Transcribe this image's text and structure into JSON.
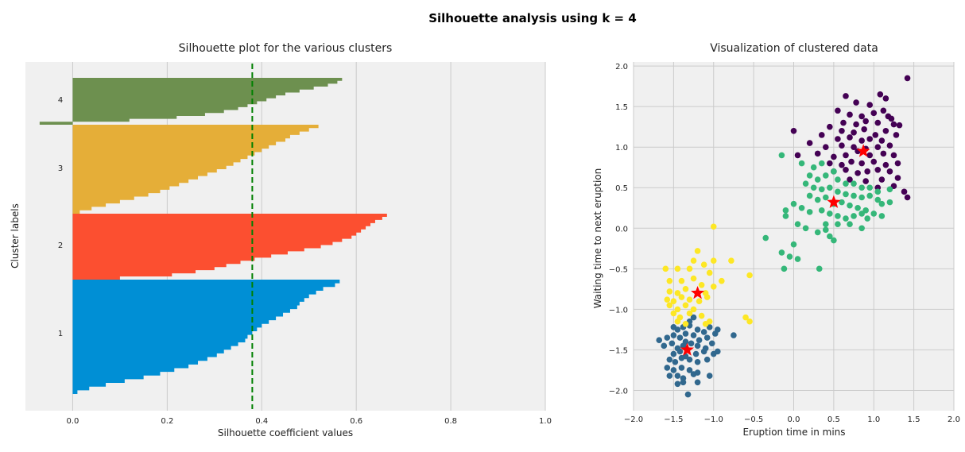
{
  "figure": {
    "suptitle": "Silhouette analysis using k = 4"
  },
  "chart_data": [
    {
      "type": "bar",
      "orientation": "horizontal",
      "title": "Silhouette plot for the various clusters",
      "xlabel": "Silhouette coefficient values",
      "ylabel": "Cluster labels",
      "xlim": [
        -0.1,
        1.0
      ],
      "xticks": [
        "0.0",
        "0.2",
        "0.4",
        "0.6",
        "0.8",
        "1.0"
      ],
      "grid": "vertical",
      "average_silhouette": 0.38,
      "average_line_color": "#008000",
      "clusters": [
        {
          "label": "1",
          "color": "#008fd5",
          "max": 0.565,
          "profile": [
            0.565,
            0.555,
            0.53,
            0.515,
            0.5,
            0.49,
            0.48,
            0.475,
            0.46,
            0.445,
            0.43,
            0.415,
            0.4,
            0.39,
            0.38,
            0.37,
            0.365,
            0.35,
            0.335,
            0.32,
            0.305,
            0.285,
            0.265,
            0.245,
            0.215,
            0.185,
            0.15,
            0.11,
            0.07,
            0.035,
            0.01
          ]
        },
        {
          "label": "2",
          "color": "#fc4f30",
          "max": 0.665,
          "profile": [
            0.665,
            0.655,
            0.64,
            0.63,
            0.62,
            0.61,
            0.6,
            0.59,
            0.57,
            0.55,
            0.525,
            0.49,
            0.455,
            0.42,
            0.385,
            0.355,
            0.325,
            0.3,
            0.26,
            0.21,
            0.1
          ]
        },
        {
          "label": "3",
          "color": "#e5ae38",
          "max": 0.52,
          "profile": [
            0.52,
            0.5,
            0.48,
            0.46,
            0.45,
            0.43,
            0.415,
            0.4,
            0.385,
            0.37,
            0.355,
            0.34,
            0.325,
            0.305,
            0.285,
            0.265,
            0.245,
            0.225,
            0.205,
            0.185,
            0.16,
            0.13,
            0.1,
            0.07,
            0.04,
            0.015
          ]
        },
        {
          "label": "4",
          "color": "#6d904f",
          "max": 0.57,
          "profile": [
            0.57,
            0.56,
            0.54,
            0.51,
            0.48,
            0.45,
            0.43,
            0.41,
            0.39,
            0.37,
            0.35,
            0.32,
            0.28,
            0.22,
            0.12,
            -0.07
          ]
        }
      ]
    },
    {
      "type": "scatter",
      "title": "Visualization of clustered data",
      "xlabel": "Eruption time in mins",
      "ylabel": "Waiting time to next eruption",
      "xlim": [
        -2.0,
        2.0
      ],
      "ylim": [
        -2.25,
        2.05
      ],
      "xticks": [
        "−2.0",
        "−1.5",
        "−1.0",
        "−0.5",
        "0.0",
        "0.5",
        "1.0",
        "1.5",
        "2.0"
      ],
      "yticks": [
        "2.0",
        "1.5",
        "1.0",
        "0.5",
        "0.0",
        "−0.5",
        "−1.0",
        "−1.5",
        "−2.0"
      ],
      "grid": true,
      "centroid_color": "#ff0000",
      "series": [
        {
          "color": "#440154",
          "centroid": [
            0.87,
            0.95
          ],
          "points": [
            [
              0.65,
              1.63
            ],
            [
              0.78,
              1.55
            ],
            [
              0.95,
              1.52
            ],
            [
              1.08,
              1.65
            ],
            [
              1.15,
              1.6
            ],
            [
              1.42,
              1.85
            ],
            [
              0.55,
              1.45
            ],
            [
              0.7,
              1.4
            ],
            [
              0.85,
              1.38
            ],
            [
              1.0,
              1.42
            ],
            [
              1.12,
              1.45
            ],
            [
              1.18,
              1.38
            ],
            [
              0.62,
              1.3
            ],
            [
              0.78,
              1.28
            ],
            [
              0.9,
              1.32
            ],
            [
              1.05,
              1.3
            ],
            [
              1.22,
              1.35
            ],
            [
              0.45,
              1.25
            ],
            [
              0.6,
              1.2
            ],
            [
              0.75,
              1.18
            ],
            [
              0.88,
              1.22
            ],
            [
              1.02,
              1.15
            ],
            [
              1.15,
              1.2
            ],
            [
              1.25,
              1.28
            ],
            [
              1.32,
              1.27
            ],
            [
              0.0,
              1.2
            ],
            [
              0.35,
              1.15
            ],
            [
              0.55,
              1.1
            ],
            [
              0.7,
              1.12
            ],
            [
              0.85,
              1.08
            ],
            [
              0.95,
              1.1
            ],
            [
              1.1,
              1.08
            ],
            [
              1.28,
              1.15
            ],
            [
              0.2,
              1.05
            ],
            [
              0.4,
              1.0
            ],
            [
              0.6,
              1.02
            ],
            [
              0.75,
              1.0
            ],
            [
              0.9,
              0.98
            ],
            [
              1.05,
              1.0
            ],
            [
              1.2,
              1.02
            ],
            [
              0.05,
              0.9
            ],
            [
              0.3,
              0.92
            ],
            [
              0.5,
              0.88
            ],
            [
              0.65,
              0.9
            ],
            [
              0.8,
              0.95
            ],
            [
              0.95,
              0.9
            ],
            [
              1.12,
              0.92
            ],
            [
              1.25,
              0.9
            ],
            [
              0.45,
              0.8
            ],
            [
              0.6,
              0.78
            ],
            [
              0.72,
              0.82
            ],
            [
              0.85,
              0.8
            ],
            [
              1.0,
              0.82
            ],
            [
              1.15,
              0.78
            ],
            [
              1.3,
              0.8
            ],
            [
              0.5,
              0.7
            ],
            [
              0.65,
              0.72
            ],
            [
              0.8,
              0.68
            ],
            [
              0.92,
              0.7
            ],
            [
              1.05,
              0.72
            ],
            [
              1.2,
              0.7
            ],
            [
              0.7,
              0.6
            ],
            [
              0.9,
              0.58
            ],
            [
              1.1,
              0.6
            ],
            [
              1.3,
              0.62
            ],
            [
              1.05,
              0.5
            ],
            [
              1.25,
              0.52
            ],
            [
              1.38,
              0.45
            ],
            [
              1.42,
              0.38
            ]
          ]
        },
        {
          "color": "#35b779",
          "centroid": [
            0.5,
            0.32
          ],
          "points": [
            [
              -0.15,
              0.9
            ],
            [
              0.1,
              0.8
            ],
            [
              0.25,
              0.75
            ],
            [
              0.35,
              0.8
            ],
            [
              0.2,
              0.65
            ],
            [
              0.3,
              0.6
            ],
            [
              0.4,
              0.65
            ],
            [
              0.5,
              0.7
            ],
            [
              0.55,
              0.6
            ],
            [
              0.65,
              0.55
            ],
            [
              0.75,
              0.55
            ],
            [
              0.85,
              0.5
            ],
            [
              0.95,
              0.5
            ],
            [
              1.05,
              0.45
            ],
            [
              1.2,
              0.48
            ],
            [
              0.15,
              0.55
            ],
            [
              0.25,
              0.5
            ],
            [
              0.35,
              0.48
            ],
            [
              0.45,
              0.5
            ],
            [
              0.55,
              0.45
            ],
            [
              0.65,
              0.42
            ],
            [
              0.75,
              0.4
            ],
            [
              0.85,
              0.38
            ],
            [
              0.95,
              0.4
            ],
            [
              1.05,
              0.35
            ],
            [
              1.1,
              0.3
            ],
            [
              1.2,
              0.32
            ],
            [
              0.3,
              0.35
            ],
            [
              0.4,
              0.38
            ],
            [
              0.5,
              0.3
            ],
            [
              0.6,
              0.32
            ],
            [
              0.7,
              0.28
            ],
            [
              0.8,
              0.25
            ],
            [
              0.9,
              0.22
            ],
            [
              1.0,
              0.18
            ],
            [
              0.0,
              0.3
            ],
            [
              0.1,
              0.25
            ],
            [
              0.2,
              0.2
            ],
            [
              0.35,
              0.22
            ],
            [
              0.45,
              0.18
            ],
            [
              0.55,
              0.15
            ],
            [
              0.65,
              0.12
            ],
            [
              0.75,
              0.15
            ],
            [
              0.85,
              0.18
            ],
            [
              0.92,
              0.12
            ],
            [
              1.1,
              0.15
            ],
            [
              0.4,
              0.05
            ],
            [
              0.55,
              0.05
            ],
            [
              0.7,
              0.05
            ],
            [
              0.85,
              0.0
            ],
            [
              -0.1,
              0.22
            ],
            [
              0.05,
              0.05
            ],
            [
              0.15,
              0.0
            ],
            [
              0.3,
              -0.05
            ],
            [
              0.45,
              -0.1
            ],
            [
              0.5,
              -0.15
            ],
            [
              0.4,
              -0.02
            ],
            [
              -0.05,
              -0.35
            ],
            [
              -0.15,
              -0.3
            ],
            [
              0.0,
              -0.2
            ],
            [
              -0.1,
              0.15
            ],
            [
              -0.35,
              -0.12
            ],
            [
              -0.12,
              -0.5
            ],
            [
              0.32,
              -0.5
            ],
            [
              0.05,
              -0.38
            ],
            [
              0.2,
              0.4
            ]
          ]
        },
        {
          "color": "#31688e",
          "centroid": [
            -1.33,
            -1.5
          ],
          "points": [
            [
              -1.5,
              -1.22
            ],
            [
              -1.45,
              -1.25
            ],
            [
              -1.38,
              -1.22
            ],
            [
              -1.3,
              -1.2
            ],
            [
              -1.2,
              -1.25
            ],
            [
              -1.12,
              -1.28
            ],
            [
              -1.05,
              -1.22
            ],
            [
              -0.95,
              -1.25
            ],
            [
              -1.58,
              -1.35
            ],
            [
              -1.5,
              -1.32
            ],
            [
              -1.42,
              -1.35
            ],
            [
              -1.35,
              -1.3
            ],
            [
              -1.25,
              -1.32
            ],
            [
              -1.18,
              -1.38
            ],
            [
              -1.08,
              -1.35
            ],
            [
              -0.98,
              -1.3
            ],
            [
              -0.75,
              -1.32
            ],
            [
              -1.62,
              -1.45
            ],
            [
              -1.52,
              -1.42
            ],
            [
              -1.45,
              -1.48
            ],
            [
              -1.38,
              -1.45
            ],
            [
              -1.28,
              -1.42
            ],
            [
              -1.2,
              -1.45
            ],
            [
              -1.1,
              -1.48
            ],
            [
              -1.02,
              -1.42
            ],
            [
              -1.5,
              -1.55
            ],
            [
              -1.42,
              -1.52
            ],
            [
              -1.35,
              -1.58
            ],
            [
              -1.22,
              -1.55
            ],
            [
              -1.12,
              -1.52
            ],
            [
              -1.0,
              -1.55
            ],
            [
              -0.95,
              -1.52
            ],
            [
              -1.55,
              -1.62
            ],
            [
              -1.48,
              -1.65
            ],
            [
              -1.4,
              -1.6
            ],
            [
              -1.3,
              -1.62
            ],
            [
              -1.2,
              -1.65
            ],
            [
              -1.08,
              -1.62
            ],
            [
              -1.58,
              -1.72
            ],
            [
              -1.5,
              -1.75
            ],
            [
              -1.4,
              -1.72
            ],
            [
              -1.3,
              -1.75
            ],
            [
              -1.2,
              -1.78
            ],
            [
              -1.45,
              -1.82
            ],
            [
              -1.38,
              -1.85
            ],
            [
              -1.25,
              -1.8
            ],
            [
              -1.45,
              -1.92
            ],
            [
              -1.38,
              -1.9
            ],
            [
              -1.32,
              -2.05
            ],
            [
              -1.2,
              -1.9
            ],
            [
              -1.05,
              -1.82
            ],
            [
              -1.68,
              -1.38
            ],
            [
              -1.25,
              -1.1
            ],
            [
              -1.3,
              -1.15
            ],
            [
              -1.55,
              -1.82
            ],
            [
              -1.35,
              -1.4
            ]
          ]
        },
        {
          "color": "#fde725",
          "centroid": [
            -1.2,
            -0.8
          ],
          "points": [
            [
              -1.0,
              0.02
            ],
            [
              -1.2,
              -0.28
            ],
            [
              -1.25,
              -0.4
            ],
            [
              -1.12,
              -0.45
            ],
            [
              -1.0,
              -0.4
            ],
            [
              -0.78,
              -0.4
            ],
            [
              -1.6,
              -0.5
            ],
            [
              -1.45,
              -0.5
            ],
            [
              -1.3,
              -0.5
            ],
            [
              -1.05,
              -0.55
            ],
            [
              -0.9,
              -0.65
            ],
            [
              -0.55,
              -0.58
            ],
            [
              -1.55,
              -0.65
            ],
            [
              -1.4,
              -0.65
            ],
            [
              -1.25,
              -0.62
            ],
            [
              -1.15,
              -0.7
            ],
            [
              -1.0,
              -0.72
            ],
            [
              -1.55,
              -0.78
            ],
            [
              -1.45,
              -0.8
            ],
            [
              -1.35,
              -0.75
            ],
            [
              -1.1,
              -0.8
            ],
            [
              -1.58,
              -0.88
            ],
            [
              -1.5,
              -0.9
            ],
            [
              -1.4,
              -0.85
            ],
            [
              -1.3,
              -0.88
            ],
            [
              -1.18,
              -0.9
            ],
            [
              -1.08,
              -0.85
            ],
            [
              -1.55,
              -0.95
            ],
            [
              -1.45,
              -1.0
            ],
            [
              -1.35,
              -0.95
            ],
            [
              -1.25,
              -1.0
            ],
            [
              -1.5,
              -1.05
            ],
            [
              -1.42,
              -1.1
            ],
            [
              -1.3,
              -1.05
            ],
            [
              -1.15,
              -1.08
            ],
            [
              -0.6,
              -1.1
            ],
            [
              -0.55,
              -1.15
            ],
            [
              -1.45,
              -1.15
            ],
            [
              -1.35,
              -1.18
            ],
            [
              -1.1,
              -1.18
            ],
            [
              -1.05,
              -1.15
            ]
          ]
        }
      ]
    }
  ]
}
